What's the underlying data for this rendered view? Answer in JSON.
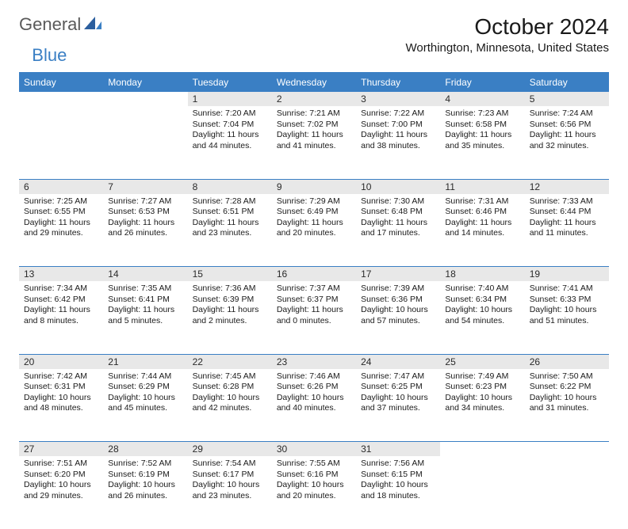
{
  "brand": {
    "part1": "General",
    "part2": "Blue"
  },
  "title": "October 2024",
  "location": "Worthington, Minnesota, United States",
  "colors": {
    "accent": "#3a7fc4",
    "header_bg": "#3a7fc4",
    "header_text": "#ffffff",
    "daynum_bg": "#e8e8e8",
    "text": "#1a1a1a",
    "logo_gray": "#5a5a5a"
  },
  "calendar": {
    "day_headers": [
      "Sunday",
      "Monday",
      "Tuesday",
      "Wednesday",
      "Thursday",
      "Friday",
      "Saturday"
    ],
    "col_width_pct": 14.285,
    "font": {
      "header_pt": 12,
      "daynum_pt": 12,
      "body_pt": 10.5,
      "title_pt": 28,
      "location_pt": 15
    },
    "weeks": [
      [
        null,
        null,
        {
          "n": "1",
          "sunrise": "7:20 AM",
          "sunset": "7:04 PM",
          "daylight": "11 hours and 44 minutes."
        },
        {
          "n": "2",
          "sunrise": "7:21 AM",
          "sunset": "7:02 PM",
          "daylight": "11 hours and 41 minutes."
        },
        {
          "n": "3",
          "sunrise": "7:22 AM",
          "sunset": "7:00 PM",
          "daylight": "11 hours and 38 minutes."
        },
        {
          "n": "4",
          "sunrise": "7:23 AM",
          "sunset": "6:58 PM",
          "daylight": "11 hours and 35 minutes."
        },
        {
          "n": "5",
          "sunrise": "7:24 AM",
          "sunset": "6:56 PM",
          "daylight": "11 hours and 32 minutes."
        }
      ],
      [
        {
          "n": "6",
          "sunrise": "7:25 AM",
          "sunset": "6:55 PM",
          "daylight": "11 hours and 29 minutes."
        },
        {
          "n": "7",
          "sunrise": "7:27 AM",
          "sunset": "6:53 PM",
          "daylight": "11 hours and 26 minutes."
        },
        {
          "n": "8",
          "sunrise": "7:28 AM",
          "sunset": "6:51 PM",
          "daylight": "11 hours and 23 minutes."
        },
        {
          "n": "9",
          "sunrise": "7:29 AM",
          "sunset": "6:49 PM",
          "daylight": "11 hours and 20 minutes."
        },
        {
          "n": "10",
          "sunrise": "7:30 AM",
          "sunset": "6:48 PM",
          "daylight": "11 hours and 17 minutes."
        },
        {
          "n": "11",
          "sunrise": "7:31 AM",
          "sunset": "6:46 PM",
          "daylight": "11 hours and 14 minutes."
        },
        {
          "n": "12",
          "sunrise": "7:33 AM",
          "sunset": "6:44 PM",
          "daylight": "11 hours and 11 minutes."
        }
      ],
      [
        {
          "n": "13",
          "sunrise": "7:34 AM",
          "sunset": "6:42 PM",
          "daylight": "11 hours and 8 minutes."
        },
        {
          "n": "14",
          "sunrise": "7:35 AM",
          "sunset": "6:41 PM",
          "daylight": "11 hours and 5 minutes."
        },
        {
          "n": "15",
          "sunrise": "7:36 AM",
          "sunset": "6:39 PM",
          "daylight": "11 hours and 2 minutes."
        },
        {
          "n": "16",
          "sunrise": "7:37 AM",
          "sunset": "6:37 PM",
          "daylight": "11 hours and 0 minutes."
        },
        {
          "n": "17",
          "sunrise": "7:39 AM",
          "sunset": "6:36 PM",
          "daylight": "10 hours and 57 minutes."
        },
        {
          "n": "18",
          "sunrise": "7:40 AM",
          "sunset": "6:34 PM",
          "daylight": "10 hours and 54 minutes."
        },
        {
          "n": "19",
          "sunrise": "7:41 AM",
          "sunset": "6:33 PM",
          "daylight": "10 hours and 51 minutes."
        }
      ],
      [
        {
          "n": "20",
          "sunrise": "7:42 AM",
          "sunset": "6:31 PM",
          "daylight": "10 hours and 48 minutes."
        },
        {
          "n": "21",
          "sunrise": "7:44 AM",
          "sunset": "6:29 PM",
          "daylight": "10 hours and 45 minutes."
        },
        {
          "n": "22",
          "sunrise": "7:45 AM",
          "sunset": "6:28 PM",
          "daylight": "10 hours and 42 minutes."
        },
        {
          "n": "23",
          "sunrise": "7:46 AM",
          "sunset": "6:26 PM",
          "daylight": "10 hours and 40 minutes."
        },
        {
          "n": "24",
          "sunrise": "7:47 AM",
          "sunset": "6:25 PM",
          "daylight": "10 hours and 37 minutes."
        },
        {
          "n": "25",
          "sunrise": "7:49 AM",
          "sunset": "6:23 PM",
          "daylight": "10 hours and 34 minutes."
        },
        {
          "n": "26",
          "sunrise": "7:50 AM",
          "sunset": "6:22 PM",
          "daylight": "10 hours and 31 minutes."
        }
      ],
      [
        {
          "n": "27",
          "sunrise": "7:51 AM",
          "sunset": "6:20 PM",
          "daylight": "10 hours and 29 minutes."
        },
        {
          "n": "28",
          "sunrise": "7:52 AM",
          "sunset": "6:19 PM",
          "daylight": "10 hours and 26 minutes."
        },
        {
          "n": "29",
          "sunrise": "7:54 AM",
          "sunset": "6:17 PM",
          "daylight": "10 hours and 23 minutes."
        },
        {
          "n": "30",
          "sunrise": "7:55 AM",
          "sunset": "6:16 PM",
          "daylight": "10 hours and 20 minutes."
        },
        {
          "n": "31",
          "sunrise": "7:56 AM",
          "sunset": "6:15 PM",
          "daylight": "10 hours and 18 minutes."
        },
        null,
        null
      ]
    ]
  }
}
